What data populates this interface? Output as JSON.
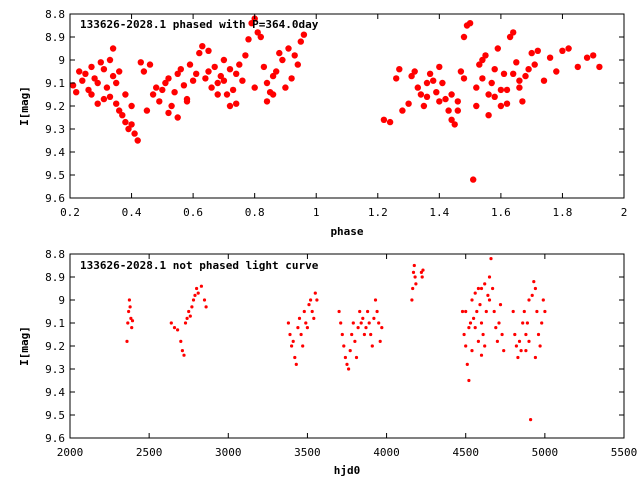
{
  "chart_data": [
    {
      "type": "scatter",
      "title": "133626-2028.1 phased with P=364.0day",
      "xlabel": "phase",
      "ylabel": "I[mag]",
      "xlim": [
        0.2,
        2.0
      ],
      "ylim": [
        9.6,
        8.8
      ],
      "y_inverted": true,
      "grid": false,
      "color": "#ff0000",
      "xticks": [
        "0.2",
        "0.4",
        "0.6",
        "0.8",
        "1",
        "1.2",
        "1.4",
        "1.6",
        "1.8",
        "2"
      ],
      "xtick_values": [
        0.2,
        0.4,
        0.6,
        0.8,
        1.0,
        1.2,
        1.4,
        1.6,
        1.8,
        2.0
      ],
      "yticks": [
        "8.8",
        "8.9",
        "9",
        "9.1",
        "9.2",
        "9.3",
        "9.4",
        "9.5",
        "9.6"
      ],
      "ytick_values": [
        8.8,
        8.9,
        9.0,
        9.1,
        9.2,
        9.3,
        9.4,
        9.5,
        9.6
      ],
      "points": [
        [
          0.21,
          9.11
        ],
        [
          0.22,
          9.14
        ],
        [
          0.23,
          9.05
        ],
        [
          0.24,
          9.09
        ],
        [
          0.25,
          9.06
        ],
        [
          0.26,
          9.13
        ],
        [
          0.27,
          9.03
        ],
        [
          0.28,
          9.08
        ],
        [
          0.29,
          9.1
        ],
        [
          0.3,
          9.01
        ],
        [
          0.31,
          9.04
        ],
        [
          0.32,
          9.12
        ],
        [
          0.33,
          9.16
        ],
        [
          0.34,
          9.07
        ],
        [
          0.35,
          9.19
        ],
        [
          0.36,
          9.22
        ],
        [
          0.37,
          9.24
        ],
        [
          0.38,
          9.27
        ],
        [
          0.39,
          9.3
        ],
        [
          0.4,
          9.28
        ],
        [
          0.41,
          9.32
        ],
        [
          0.42,
          9.35
        ],
        [
          0.4,
          9.2
        ],
        [
          0.38,
          9.15
        ],
        [
          0.36,
          9.05
        ],
        [
          0.34,
          8.95
        ],
        [
          0.33,
          9.0
        ],
        [
          0.35,
          9.1
        ],
        [
          0.44,
          9.05
        ],
        [
          0.46,
          9.02
        ],
        [
          0.47,
          9.15
        ],
        [
          0.48,
          9.12
        ],
        [
          0.49,
          9.18
        ],
        [
          0.5,
          9.13
        ],
        [
          0.51,
          9.1
        ],
        [
          0.52,
          9.08
        ],
        [
          0.53,
          9.2
        ],
        [
          0.54,
          9.14
        ],
        [
          0.55,
          9.06
        ],
        [
          0.56,
          9.04
        ],
        [
          0.57,
          9.11
        ],
        [
          0.58,
          9.17
        ],
        [
          0.59,
          9.02
        ],
        [
          0.6,
          9.09
        ],
        [
          0.61,
          9.06
        ],
        [
          0.62,
          8.97
        ],
        [
          0.63,
          8.94
        ],
        [
          0.64,
          9.08
        ],
        [
          0.65,
          9.05
        ],
        [
          0.66,
          9.12
        ],
        [
          0.67,
          9.03
        ],
        [
          0.68,
          9.1
        ],
        [
          0.69,
          9.07
        ],
        [
          0.7,
          9.0
        ],
        [
          0.71,
          9.15
        ],
        [
          0.72,
          9.04
        ],
        [
          0.73,
          9.13
        ],
        [
          0.74,
          9.06
        ],
        [
          0.75,
          9.02
        ],
        [
          0.76,
          9.09
        ],
        [
          0.77,
          8.98
        ],
        [
          0.78,
          8.91
        ],
        [
          0.79,
          8.84
        ],
        [
          0.8,
          8.82
        ],
        [
          0.81,
          8.88
        ],
        [
          0.82,
          8.9
        ],
        [
          0.83,
          9.03
        ],
        [
          0.84,
          9.1
        ],
        [
          0.85,
          9.14
        ],
        [
          0.86,
          9.07
        ],
        [
          0.87,
          9.05
        ],
        [
          0.88,
          8.97
        ],
        [
          0.89,
          9.0
        ],
        [
          0.9,
          9.12
        ],
        [
          0.91,
          8.95
        ],
        [
          0.92,
          9.08
        ],
        [
          0.93,
          8.98
        ],
        [
          0.94,
          9.02
        ],
        [
          0.95,
          8.92
        ],
        [
          0.96,
          8.89
        ],
        [
          0.45,
          9.22
        ],
        [
          0.55,
          9.25
        ],
        [
          0.58,
          9.18
        ],
        [
          0.52,
          9.23
        ],
        [
          0.68,
          9.15
        ],
        [
          0.72,
          9.2
        ],
        [
          0.74,
          9.19
        ],
        [
          0.84,
          9.18
        ],
        [
          0.86,
          9.15
        ],
        [
          0.8,
          9.12
        ],
        [
          0.29,
          9.19
        ],
        [
          0.31,
          9.17
        ],
        [
          0.27,
          9.15
        ],
        [
          0.43,
          9.01
        ],
        [
          0.65,
          8.96
        ],
        [
          0.7,
          9.09
        ],
        [
          1.22,
          9.26
        ],
        [
          1.24,
          9.27
        ],
        [
          1.26,
          9.08
        ],
        [
          1.27,
          9.04
        ],
        [
          1.28,
          9.22
        ],
        [
          1.3,
          9.19
        ],
        [
          1.31,
          9.07
        ],
        [
          1.32,
          9.05
        ],
        [
          1.33,
          9.12
        ],
        [
          1.34,
          9.15
        ],
        [
          1.35,
          9.2
        ],
        [
          1.36,
          9.16
        ],
        [
          1.37,
          9.06
        ],
        [
          1.38,
          9.09
        ],
        [
          1.39,
          9.14
        ],
        [
          1.4,
          9.03
        ],
        [
          1.41,
          9.1
        ],
        [
          1.42,
          9.17
        ],
        [
          1.43,
          9.22
        ],
        [
          1.44,
          9.26
        ],
        [
          1.45,
          9.28
        ],
        [
          1.46,
          9.18
        ],
        [
          1.47,
          9.05
        ],
        [
          1.48,
          8.9
        ],
        [
          1.49,
          8.85
        ],
        [
          1.5,
          8.84
        ],
        [
          1.51,
          9.52
        ],
        [
          1.52,
          9.12
        ],
        [
          1.53,
          9.02
        ],
        [
          1.54,
          9.08
        ],
        [
          1.55,
          8.98
        ],
        [
          1.56,
          9.15
        ],
        [
          1.57,
          9.1
        ],
        [
          1.58,
          9.04
        ],
        [
          1.59,
          8.95
        ],
        [
          1.6,
          9.2
        ],
        [
          1.61,
          9.06
        ],
        [
          1.62,
          9.13
        ],
        [
          1.63,
          8.9
        ],
        [
          1.64,
          8.88
        ],
        [
          1.65,
          9.01
        ],
        [
          1.66,
          9.09
        ],
        [
          1.67,
          9.18
        ],
        [
          1.68,
          9.07
        ],
        [
          1.69,
          9.04
        ],
        [
          1.7,
          8.97
        ],
        [
          1.71,
          9.02
        ],
        [
          1.72,
          8.96
        ],
        [
          1.74,
          9.09
        ],
        [
          1.76,
          8.99
        ],
        [
          1.78,
          9.05
        ],
        [
          1.8,
          8.96
        ],
        [
          1.82,
          8.95
        ],
        [
          1.85,
          9.03
        ],
        [
          1.88,
          8.99
        ],
        [
          1.9,
          8.98
        ],
        [
          1.92,
          9.03
        ],
        [
          1.44,
          9.15
        ],
        [
          1.46,
          9.22
        ],
        [
          1.52,
          9.2
        ],
        [
          1.56,
          9.24
        ],
        [
          1.58,
          9.16
        ],
        [
          1.62,
          9.19
        ],
        [
          1.66,
          9.12
        ],
        [
          1.36,
          9.1
        ],
        [
          1.4,
          9.18
        ],
        [
          1.48,
          9.08
        ],
        [
          1.54,
          9.0
        ],
        [
          1.6,
          9.13
        ],
        [
          1.64,
          9.06
        ]
      ]
    },
    {
      "type": "scatter",
      "title": "133626-2028.1 not phased light curve",
      "xlabel": "hjd0",
      "ylabel": "I[mag]",
      "xlim": [
        2000,
        5500
      ],
      "ylim": [
        9.6,
        8.8
      ],
      "y_inverted": true,
      "grid": false,
      "color": "#ff0000",
      "xticks": [
        "2000",
        "2500",
        "3000",
        "3500",
        "4000",
        "4500",
        "5000",
        "5500"
      ],
      "xtick_values": [
        2000,
        2500,
        3000,
        3500,
        4000,
        4500,
        5000,
        5500
      ],
      "yticks": [
        "8.8",
        "8.9",
        "9",
        "9.1",
        "9.2",
        "9.3",
        "9.4",
        "9.5",
        "9.6"
      ],
      "ytick_values": [
        8.8,
        8.9,
        9.0,
        9.1,
        9.2,
        9.3,
        9.4,
        9.5,
        9.6
      ],
      "points": [
        [
          2360,
          9.18
        ],
        [
          2365,
          9.1
        ],
        [
          2370,
          9.05
        ],
        [
          2375,
          9.0
        ],
        [
          2380,
          9.03
        ],
        [
          2385,
          9.08
        ],
        [
          2390,
          9.12
        ],
        [
          2395,
          9.09
        ],
        [
          2640,
          9.1
        ],
        [
          2660,
          9.12
        ],
        [
          2680,
          9.13
        ],
        [
          2700,
          9.18
        ],
        [
          2710,
          9.22
        ],
        [
          2720,
          9.24
        ],
        [
          2730,
          9.1
        ],
        [
          2740,
          9.08
        ],
        [
          2750,
          9.05
        ],
        [
          2760,
          9.07
        ],
        [
          2770,
          9.03
        ],
        [
          2780,
          9.0
        ],
        [
          2790,
          8.98
        ],
        [
          2800,
          8.95
        ],
        [
          2810,
          8.97
        ],
        [
          2830,
          8.94
        ],
        [
          2850,
          9.0
        ],
        [
          2860,
          9.03
        ],
        [
          3380,
          9.1
        ],
        [
          3390,
          9.15
        ],
        [
          3400,
          9.2
        ],
        [
          3410,
          9.18
        ],
        [
          3420,
          9.25
        ],
        [
          3430,
          9.28
        ],
        [
          3440,
          9.12
        ],
        [
          3450,
          9.08
        ],
        [
          3460,
          9.15
        ],
        [
          3470,
          9.2
        ],
        [
          3480,
          9.05
        ],
        [
          3490,
          9.1
        ],
        [
          3500,
          9.12
        ],
        [
          3510,
          9.02
        ],
        [
          3520,
          9.0
        ],
        [
          3530,
          9.05
        ],
        [
          3540,
          9.08
        ],
        [
          3550,
          8.97
        ],
        [
          3560,
          9.0
        ],
        [
          3700,
          9.05
        ],
        [
          3710,
          9.1
        ],
        [
          3720,
          9.15
        ],
        [
          3730,
          9.2
        ],
        [
          3740,
          9.25
        ],
        [
          3750,
          9.28
        ],
        [
          3760,
          9.3
        ],
        [
          3770,
          9.22
        ],
        [
          3780,
          9.15
        ],
        [
          3790,
          9.1
        ],
        [
          3800,
          9.18
        ],
        [
          3810,
          9.25
        ],
        [
          3820,
          9.12
        ],
        [
          3830,
          9.05
        ],
        [
          3840,
          9.1
        ],
        [
          3850,
          9.08
        ],
        [
          3860,
          9.15
        ],
        [
          3870,
          9.12
        ],
        [
          3880,
          9.05
        ],
        [
          3890,
          9.1
        ],
        [
          3900,
          9.15
        ],
        [
          3910,
          9.2
        ],
        [
          3920,
          9.08
        ],
        [
          3930,
          9.0
        ],
        [
          3940,
          9.05
        ],
        [
          3950,
          9.1
        ],
        [
          3960,
          9.18
        ],
        [
          3970,
          9.12
        ],
        [
          4160,
          9.0
        ],
        [
          4165,
          8.95
        ],
        [
          4170,
          8.88
        ],
        [
          4175,
          8.85
        ],
        [
          4180,
          8.9
        ],
        [
          4185,
          8.93
        ],
        [
          4220,
          8.88
        ],
        [
          4225,
          8.9
        ],
        [
          4230,
          8.87
        ],
        [
          4480,
          9.05
        ],
        [
          4490,
          9.15
        ],
        [
          4500,
          9.2
        ],
        [
          4510,
          9.28
        ],
        [
          4520,
          9.35
        ],
        [
          4530,
          9.1
        ],
        [
          4540,
          9.0
        ],
        [
          4550,
          9.08
        ],
        [
          4560,
          9.12
        ],
        [
          4570,
          9.05
        ],
        [
          4580,
          8.95
        ],
        [
          4590,
          9.02
        ],
        [
          4600,
          9.1
        ],
        [
          4610,
          9.15
        ],
        [
          4620,
          9.2
        ],
        [
          4630,
          9.05
        ],
        [
          4640,
          8.98
        ],
        [
          4650,
          8.9
        ],
        [
          4660,
          8.82
        ],
        [
          4670,
          8.95
        ],
        [
          4680,
          9.05
        ],
        [
          4690,
          9.12
        ],
        [
          4700,
          9.18
        ],
        [
          4710,
          9.1
        ],
        [
          4720,
          9.02
        ],
        [
          4730,
          9.15
        ],
        [
          4740,
          9.22
        ],
        [
          4600,
          9.24
        ],
        [
          4620,
          8.93
        ],
        [
          4580,
          9.18
        ],
        [
          4540,
          9.22
        ],
        [
          4520,
          9.12
        ],
        [
          4500,
          9.05
        ],
        [
          4560,
          8.97
        ],
        [
          4600,
          8.95
        ],
        [
          4650,
          9.0
        ],
        [
          4800,
          9.05
        ],
        [
          4810,
          9.15
        ],
        [
          4820,
          9.2
        ],
        [
          4830,
          9.25
        ],
        [
          4840,
          9.18
        ],
        [
          4850,
          9.22
        ],
        [
          4860,
          9.1
        ],
        [
          4870,
          9.05
        ],
        [
          4880,
          9.15
        ],
        [
          4890,
          9.1
        ],
        [
          4900,
          9.0
        ],
        [
          4910,
          9.52
        ],
        [
          4920,
          8.98
        ],
        [
          4930,
          8.92
        ],
        [
          4940,
          8.95
        ],
        [
          4950,
          9.05
        ],
        [
          4960,
          9.15
        ],
        [
          4970,
          9.2
        ],
        [
          4980,
          9.1
        ],
        [
          4990,
          9.0
        ],
        [
          5000,
          9.05
        ],
        [
          4900,
          9.18
        ],
        [
          4940,
          9.25
        ],
        [
          4880,
          9.22
        ]
      ]
    }
  ]
}
